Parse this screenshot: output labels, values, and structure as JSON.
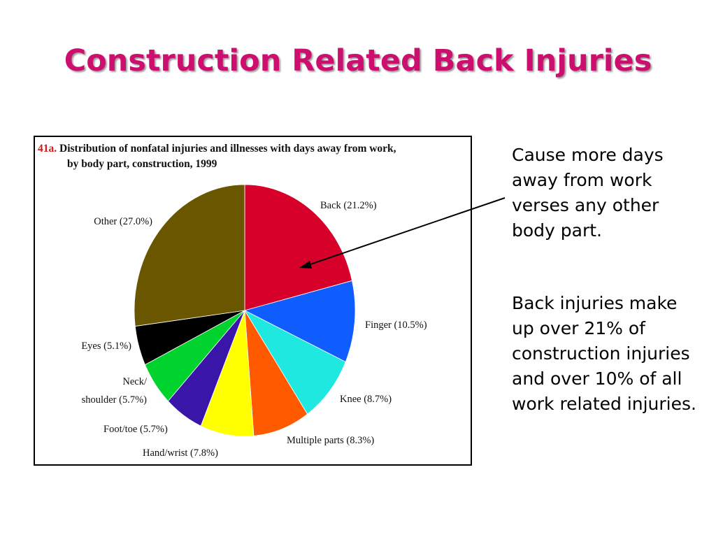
{
  "slide": {
    "title": "Construction Related Back Injuries",
    "bullets": [
      "Cause more days away from work verses any other body part.",
      "Back injuries make up over 21% of construction injuries and over 10% of all work related injuries."
    ]
  },
  "figure": {
    "number": "41a.",
    "caption_line1": "Distribution of nonfatal injuries and illnesses with days away from work,",
    "caption_line2": "by body part, construction, 1999"
  },
  "chart_data": {
    "type": "pie",
    "title": "41a. Distribution of nonfatal injuries and illnesses with days away from work, by body part, construction, 1999",
    "unit": "%",
    "slices": [
      {
        "label": "Back (21.2%)",
        "value": 21.2,
        "color": "#d6002a"
      },
      {
        "label": "Finger (10.5%)",
        "value": 10.5,
        "color": "#0f5cff"
      },
      {
        "label": "Knee (8.7%)",
        "value": 8.7,
        "color": "#1fe8e0"
      },
      {
        "label": "Multiple parts (8.3%)",
        "value": 8.3,
        "color": "#ff5a00"
      },
      {
        "label": "Hand/wrist (7.8%)",
        "value": 7.8,
        "color": "#ffff00"
      },
      {
        "label": "Foot/toe (5.7%)",
        "value": 5.7,
        "color": "#3a16a8"
      },
      {
        "label": "Neck/ shoulder (5.7%)",
        "value": 5.7,
        "color": "#00d22e"
      },
      {
        "label": "Eyes (5.1%)",
        "value": 5.1,
        "color": "#000000"
      },
      {
        "label": "Other (27.0%)",
        "value": 27.0,
        "color": "#6b5600"
      }
    ]
  }
}
